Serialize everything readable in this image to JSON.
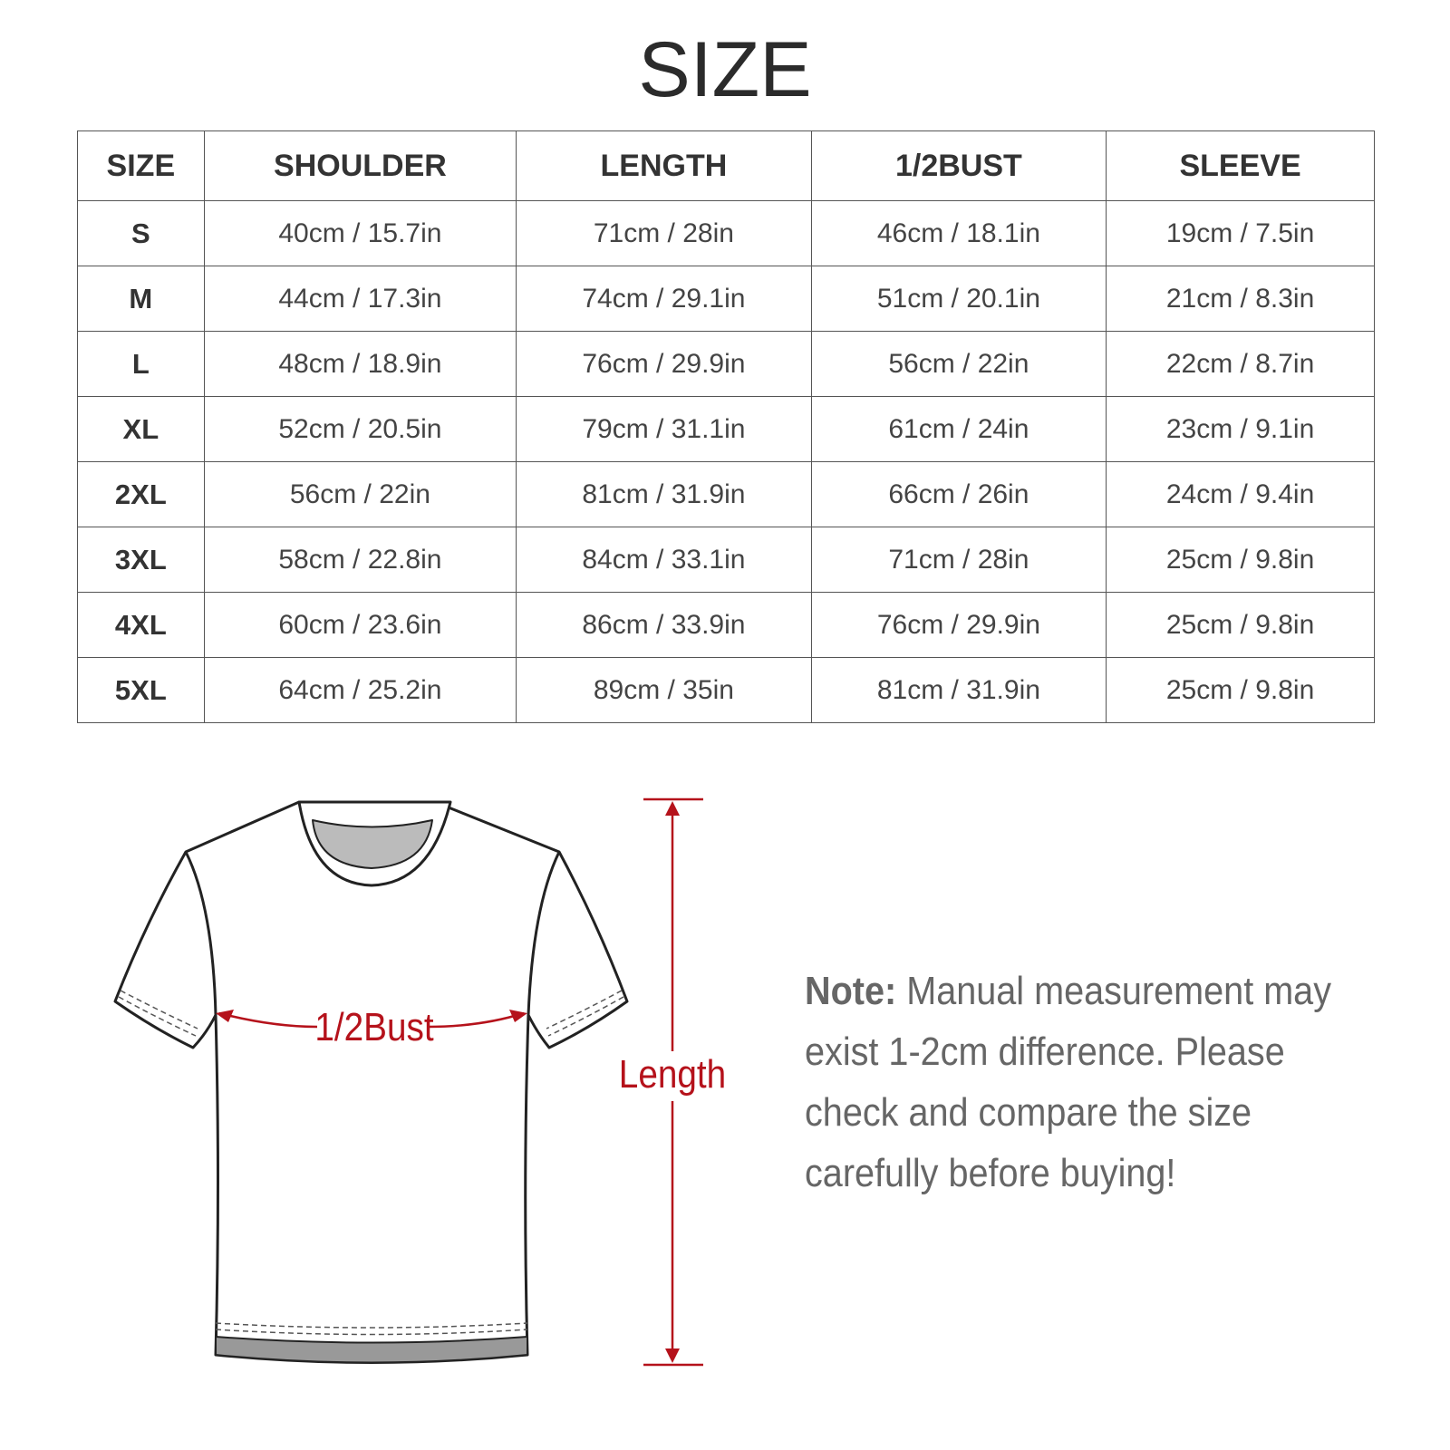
{
  "title": "SIZE",
  "table": {
    "header": [
      "SIZE",
      "SHOULDER",
      "LENGTH",
      "1/2BUST",
      "SLEEVE"
    ],
    "rows": [
      [
        "S",
        "40cm / 15.7in",
        "71cm / 28in",
        "46cm / 18.1in",
        "19cm / 7.5in"
      ],
      [
        "M",
        "44cm / 17.3in",
        "74cm / 29.1in",
        "51cm / 20.1in",
        "21cm / 8.3in"
      ],
      [
        "L",
        "48cm / 18.9in",
        "76cm / 29.9in",
        "56cm / 22in",
        "22cm / 8.7in"
      ],
      [
        "XL",
        "52cm / 20.5in",
        "79cm / 31.1in",
        "61cm / 24in",
        "23cm / 9.1in"
      ],
      [
        "2XL",
        "56cm / 22in",
        "81cm / 31.9in",
        "66cm / 26in",
        "24cm / 9.4in"
      ],
      [
        "3XL",
        "58cm / 22.8in",
        "84cm / 33.1in",
        "71cm / 28in",
        "25cm / 9.8in"
      ],
      [
        "4XL",
        "60cm / 23.6in",
        "86cm / 33.9in",
        "76cm / 29.9in",
        "25cm / 9.8in"
      ],
      [
        "5XL",
        "64cm / 25.2in",
        "89cm / 35in",
        "81cm / 31.9in",
        "25cm / 9.8in"
      ]
    ]
  },
  "diagram": {
    "bust_label": "1/2Bust",
    "length_label": "Length"
  },
  "note": {
    "label": "Note:",
    "text": "Manual measurement may exist 1-2cm difference. Please check and compare the size carefully before buying!"
  }
}
